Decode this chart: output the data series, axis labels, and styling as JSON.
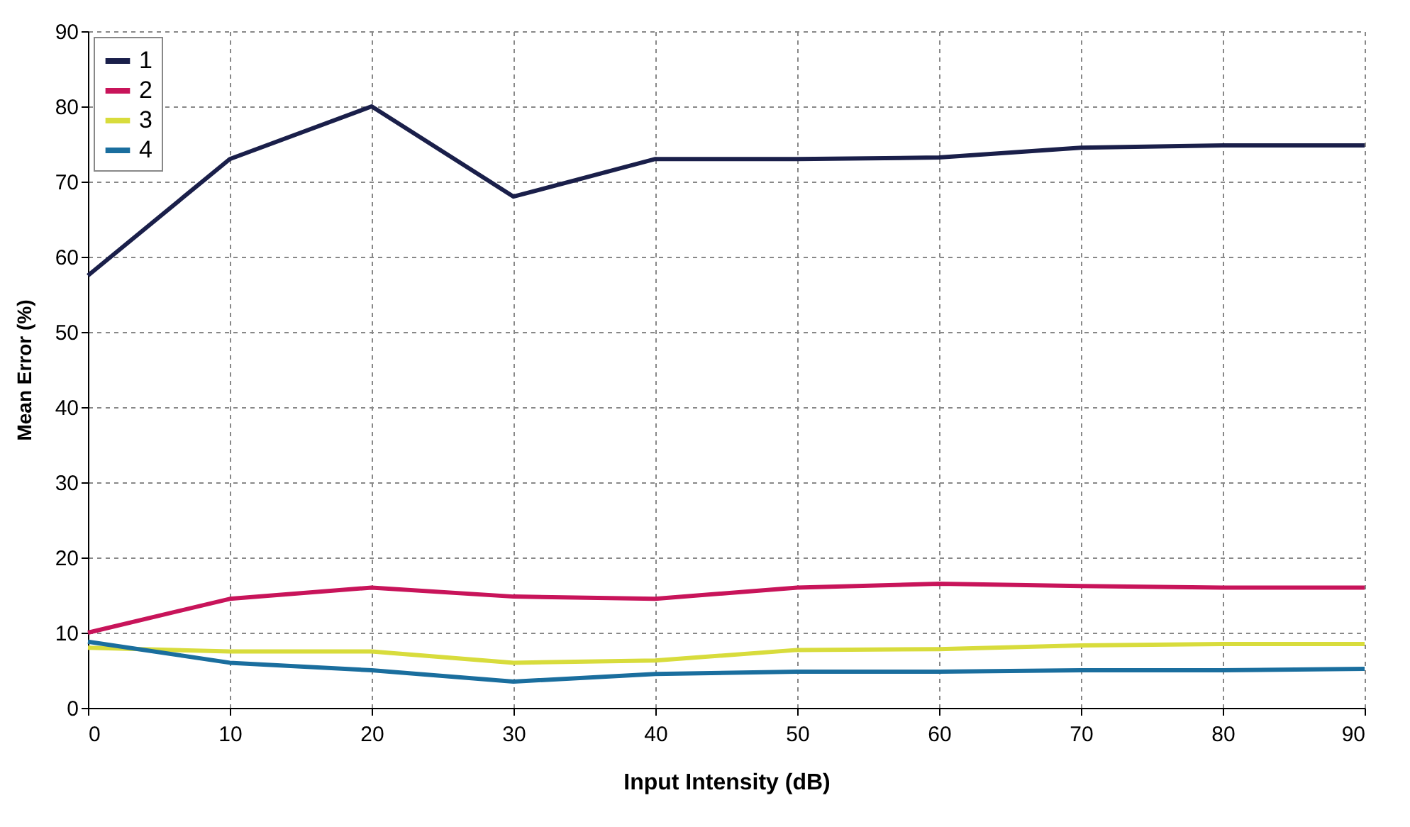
{
  "chart_data": {
    "type": "line",
    "xlabel": "Input Intensity (dB)",
    "ylabel": "Mean Error (%)",
    "x": [
      0,
      10,
      20,
      30,
      40,
      50,
      60,
      70,
      80,
      90
    ],
    "series": [
      {
        "name": "1",
        "color": "#1a1f4a",
        "values": [
          57.5,
          73,
          80,
          68,
          73,
          73,
          73.2,
          74.5,
          74.8,
          74.8
        ]
      },
      {
        "name": "2",
        "color": "#c8145a",
        "values": [
          10,
          14.5,
          16,
          14.8,
          14.5,
          16,
          16.5,
          16.2,
          16,
          16
        ]
      },
      {
        "name": "3",
        "color": "#d8dc3c",
        "values": [
          8,
          7.5,
          7.5,
          6,
          6.3,
          7.7,
          7.8,
          8.3,
          8.5,
          8.5
        ]
      },
      {
        "name": "4",
        "color": "#1a6e9e",
        "values": [
          8.8,
          6,
          5,
          3.5,
          4.5,
          4.8,
          4.8,
          5,
          5,
          5.2
        ]
      }
    ],
    "xlim": [
      0,
      90
    ],
    "xticks": [
      0,
      10,
      20,
      30,
      40,
      50,
      60,
      70,
      80,
      90
    ],
    "ylim": [
      0,
      90
    ],
    "yticks": [
      0,
      10,
      20,
      30,
      40,
      50,
      60,
      70,
      80,
      90
    ],
    "grid": true,
    "legend": "top left",
    "marker": "none",
    "line_style": "solid"
  }
}
